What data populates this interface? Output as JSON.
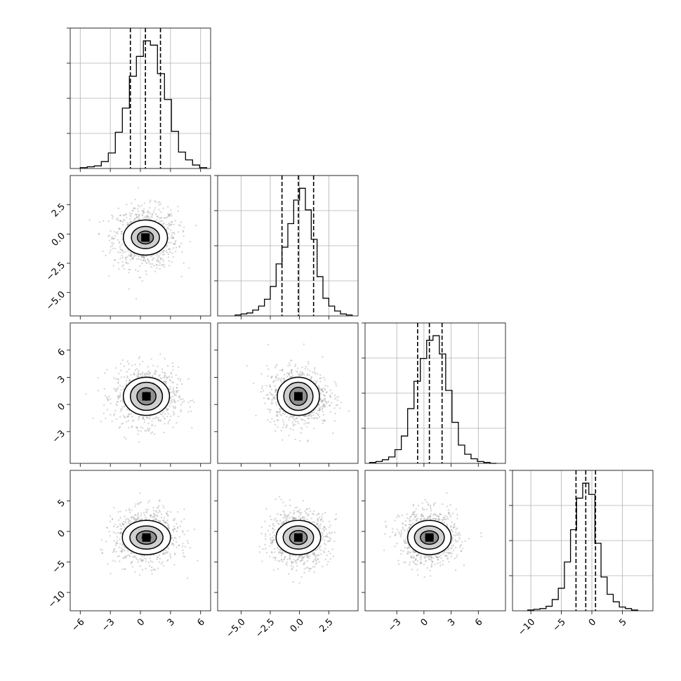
{
  "chart_data": {
    "type": "corner",
    "grid": true,
    "parameters": [
      {
        "range": [
          -7,
          7
        ],
        "ticks": [
          -6,
          -3,
          0,
          3,
          6
        ],
        "tick_labels": [
          "−6",
          "−3",
          "0",
          "3",
          "6"
        ],
        "quantiles": [
          -1.0,
          0.5,
          2.0
        ],
        "hist": {
          "edges": [
            -6,
            -5.3,
            -4.6,
            -3.9,
            -3.2,
            -2.5,
            -1.8,
            -1.1,
            -0.4,
            0.3,
            1.0,
            1.7,
            2.4,
            3.1,
            3.8,
            4.5,
            5.2,
            5.9,
            6.6
          ],
          "values": [
            1,
            2,
            3,
            8,
            18,
            42,
            70,
            107,
            130,
            148,
            143,
            110,
            80,
            43,
            19,
            10,
            4,
            1
          ]
        }
      },
      {
        "range": [
          -7,
          5
        ],
        "ticks": [
          -5,
          -2.5,
          0,
          2.5
        ],
        "tick_labels": [
          "−5.0",
          "−2.5",
          "0.0",
          "2.5"
        ],
        "quantiles": [
          -1.5,
          -0.1,
          1.2
        ],
        "hist": {
          "edges": [
            -5.5,
            -5.0,
            -4.5,
            -4.0,
            -3.5,
            -3.0,
            -2.5,
            -2.0,
            -1.5,
            -1.0,
            -0.5,
            0.0,
            0.5,
            1.0,
            1.5,
            2.0,
            2.5,
            3.0,
            3.5,
            4.0,
            4.5
          ],
          "values": [
            1,
            2,
            3,
            6,
            10,
            17,
            30,
            53,
            70,
            94,
            118,
            130,
            108,
            78,
            40,
            18,
            10,
            5,
            2,
            1
          ]
        }
      },
      {
        "range": [
          -6.5,
          9
        ],
        "ticks": [
          -3,
          0,
          3,
          6
        ],
        "tick_labels": [
          "−3",
          "0",
          "3",
          "6"
        ],
        "quantiles": [
          -0.7,
          0.6,
          2.0
        ],
        "hist": {
          "edges": [
            -6.0,
            -5.3,
            -4.6,
            -3.9,
            -3.2,
            -2.5,
            -1.8,
            -1.1,
            -0.4,
            0.3,
            1.0,
            1.7,
            2.4,
            3.1,
            3.8,
            4.5,
            5.2,
            5.9,
            6.6,
            7.3,
            8.0
          ],
          "values": [
            1,
            2,
            4,
            7,
            15,
            30,
            60,
            90,
            115,
            135,
            140,
            120,
            80,
            45,
            20,
            10,
            5,
            2,
            1,
            0
          ]
        }
      },
      {
        "range": [
          -13,
          10
        ],
        "ticks": [
          -10,
          -5,
          0,
          5
        ],
        "tick_labels": [
          "−10",
          "−5",
          "0",
          "5"
        ],
        "quantiles": [
          -2.6,
          -1.0,
          0.6
        ],
        "hist": {
          "edges": [
            -10.5,
            -9.5,
            -8.5,
            -7.5,
            -6.5,
            -5.5,
            -4.5,
            -3.5,
            -2.5,
            -1.5,
            -0.5,
            0.5,
            1.5,
            2.5,
            3.5,
            4.5,
            5.5,
            6.5,
            7.5
          ],
          "values": [
            1,
            2,
            3,
            6,
            15,
            30,
            65,
            108,
            150,
            170,
            155,
            90,
            45,
            22,
            12,
            5,
            3,
            1
          ]
        }
      }
    ],
    "pairs": [
      {
        "row": 1,
        "col": 0,
        "center": [
          0.5,
          -0.3
        ],
        "sigma": [
          1.6,
          1.3
        ],
        "levels": [
          [
            2.2,
            1.5
          ],
          [
            1.4,
            0.95
          ],
          [
            0.8,
            0.55
          ],
          [
            0.35,
            0.25
          ]
        ]
      },
      {
        "row": 2,
        "col": 0,
        "center": [
          0.6,
          0.9
        ],
        "sigma": [
          1.6,
          1.6
        ],
        "levels": [
          [
            2.3,
            2.1
          ],
          [
            1.6,
            1.55
          ],
          [
            0.95,
            0.95
          ],
          [
            0.45,
            0.5
          ]
        ]
      },
      {
        "row": 2,
        "col": 1,
        "center": [
          -0.1,
          0.9
        ],
        "sigma": [
          1.3,
          1.6
        ],
        "levels": [
          [
            1.8,
            2.1
          ],
          [
            1.25,
            1.55
          ],
          [
            0.75,
            1.0
          ],
          [
            0.35,
            0.5
          ]
        ]
      },
      {
        "row": 3,
        "col": 0,
        "center": [
          0.6,
          -1.0
        ],
        "sigma": [
          1.6,
          2.2
        ],
        "levels": [
          [
            2.4,
            2.8
          ],
          [
            1.65,
            1.9
          ],
          [
            1.0,
            1.1
          ],
          [
            0.5,
            0.5
          ]
        ]
      },
      {
        "row": 3,
        "col": 1,
        "center": [
          -0.1,
          -1.0
        ],
        "sigma": [
          1.3,
          2.2
        ],
        "levels": [
          [
            1.9,
            2.8
          ],
          [
            1.3,
            1.9
          ],
          [
            0.75,
            1.15
          ],
          [
            0.35,
            0.5
          ]
        ]
      },
      {
        "row": 3,
        "col": 2,
        "center": [
          0.6,
          -1.0
        ],
        "sigma": [
          1.6,
          2.2
        ],
        "levels": [
          [
            2.4,
            2.8
          ],
          [
            1.65,
            1.9
          ],
          [
            1.0,
            1.1
          ],
          [
            0.5,
            0.5
          ]
        ]
      }
    ]
  }
}
